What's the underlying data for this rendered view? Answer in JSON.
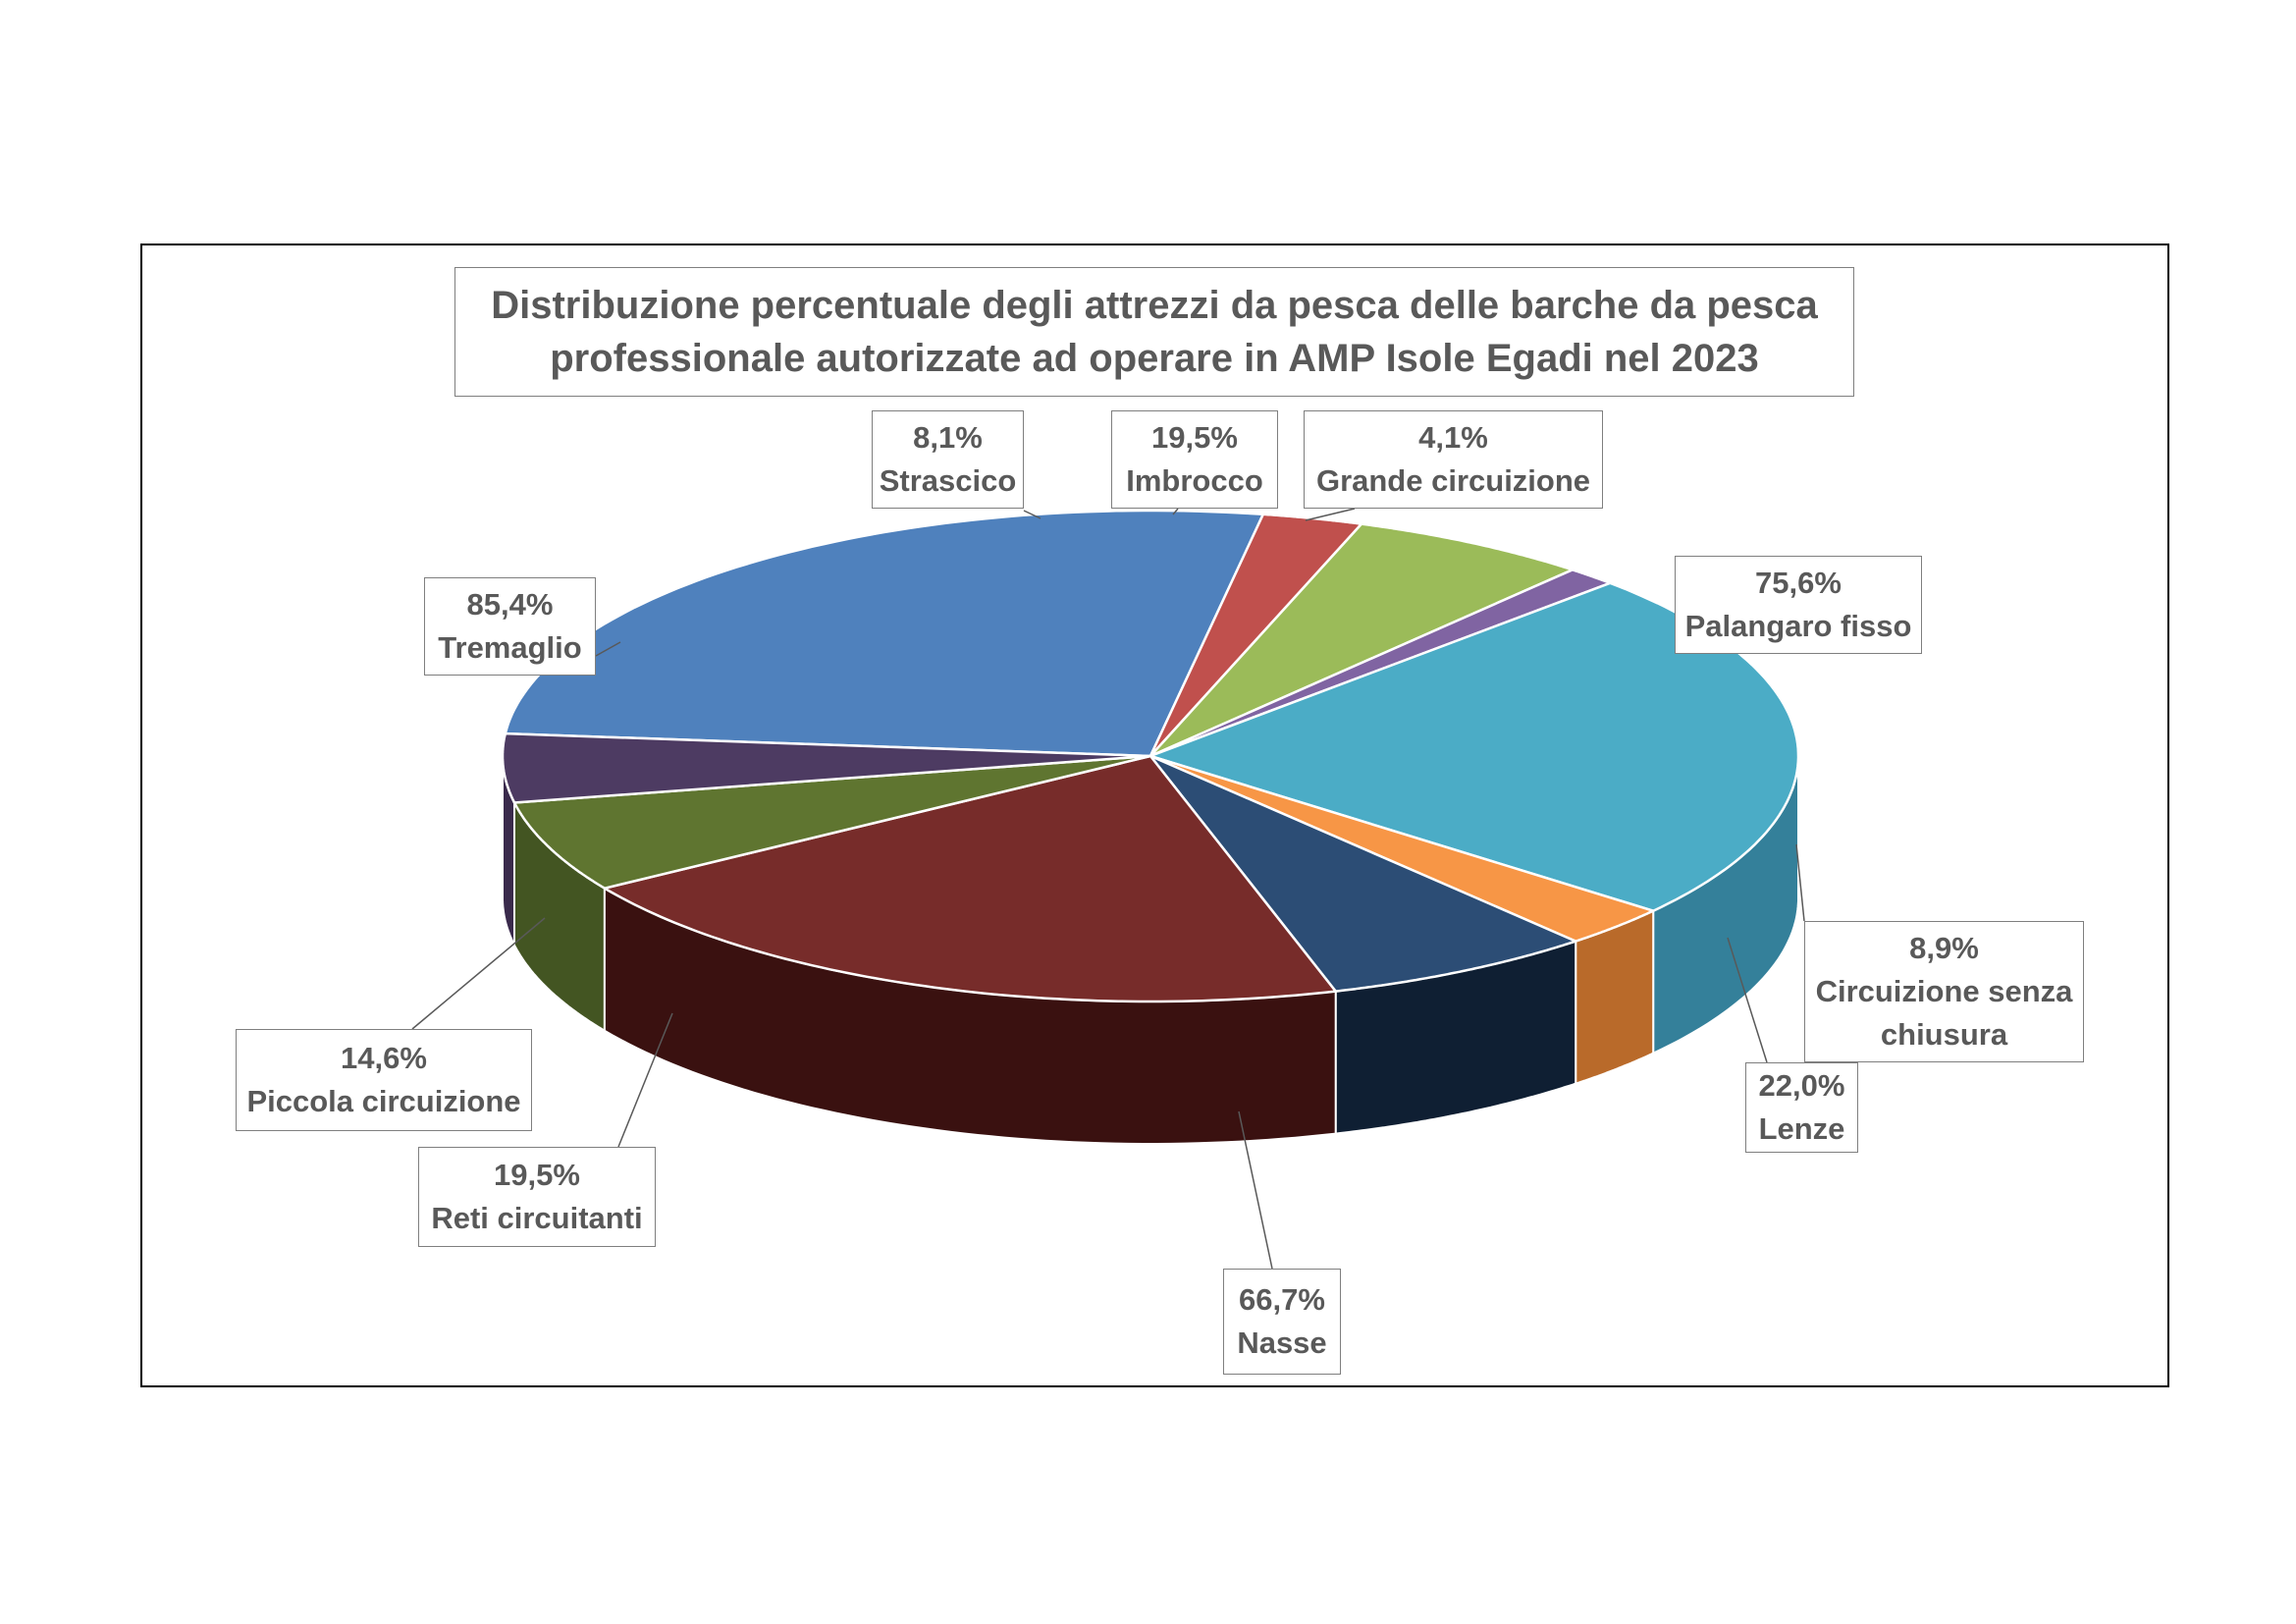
{
  "chart_data": {
    "type": "pie",
    "title": "Distribuzione percentuale degli attrezzi da pesca delle barche da pesca\nprofessionale autorizzate ad operare in AMP Isole Egadi nel 2023",
    "slices": [
      {
        "name": "Tremaglio",
        "value": 85.4,
        "label": "85,4%",
        "color": "#4f81bd",
        "side": "#3a6496"
      },
      {
        "name": "Strascico",
        "value": 8.1,
        "label": "8,1%",
        "color": "#c0504d",
        "side": "#8c3735"
      },
      {
        "name": "Imbrocco",
        "value": 19.5,
        "label": "19,5%",
        "color": "#9bbb59",
        "side": "#6f8a3e"
      },
      {
        "name": "Grande circuizione",
        "value": 4.1,
        "label": "4,1%",
        "color": "#8064a2",
        "side": "#5c4678"
      },
      {
        "name": "Palangaro fisso",
        "value": 75.6,
        "label": "75,6%",
        "color": "#4bacc6",
        "side": "#34809a"
      },
      {
        "name": "Circuizione senza chiusura",
        "value": 8.9,
        "label": "8,9%",
        "color": "#f79646",
        "side": "#b96a2a"
      },
      {
        "name": "Lenze",
        "value": 22.0,
        "label": "22,0%",
        "color": "#2c4d75",
        "side": "#0f1f33"
      },
      {
        "name": "Nasse",
        "value": 66.7,
        "label": "66,7%",
        "color": "#772c2a",
        "side": "#3a1110"
      },
      {
        "name": "Reti circuitanti",
        "value": 19.5,
        "label": "19,5%",
        "color": "#5f7530",
        "side": "#435522"
      },
      {
        "name": "Piccola circuizione",
        "value": 14.6,
        "label": "14,6%",
        "color": "#4d3b62",
        "side": "#3a2a4c"
      }
    ],
    "legend": "none",
    "data_labels": "callout"
  }
}
